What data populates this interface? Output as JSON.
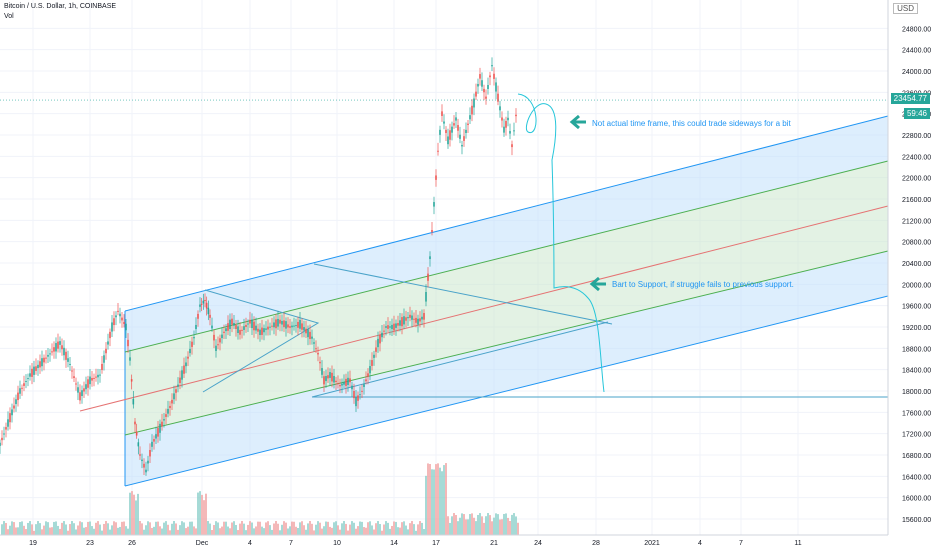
{
  "header": {
    "symbol": "Bitcoin / U.S. Dollar, 1h, COINBASE",
    "volume_label": "Vol",
    "currency": "USD"
  },
  "tags": {
    "last_price": "23454.77",
    "countdown": "59:46"
  },
  "notes": {
    "top": "Not actual time frame, this could trade sideways for a bit",
    "bottom": "Bart to Support, if struggle fails to previous support."
  },
  "colors": {
    "up": "#26a69a",
    "down": "#ef5350",
    "channel_blue": "#2196f3",
    "channel_green": "#4caf50",
    "median_red": "#e57373",
    "arrow": "#26a69a"
  },
  "chart_data": {
    "type": "candlestick",
    "title": "Bitcoin / U.S. Dollar, 1h, COINBASE",
    "ylim": [
      15400,
      25200
    ],
    "y_ticks": [
      15600,
      16000,
      16400,
      16800,
      17200,
      17600,
      18000,
      18400,
      18800,
      19200,
      19600,
      20000,
      20400,
      20800,
      21200,
      21600,
      22000,
      22400,
      22800,
      23200,
      23600,
      24000,
      24400,
      24800
    ],
    "y_tick_labels": [
      "15600.00",
      "16000.00",
      "16400.00",
      "16800.00",
      "17200.00",
      "17600.00",
      "18000.00",
      "18400.00",
      "18800.00",
      "19200.00",
      "19600.00",
      "20000.00",
      "20400.00",
      "20800.00",
      "21200.00",
      "21600.00",
      "22000.00",
      "22400.00",
      "22800.00",
      "23200.00",
      "23600.00",
      "24000.00",
      "24400.00",
      "24800.00"
    ],
    "x_ticks": [
      "19",
      "23",
      "26",
      "Dec",
      "4",
      "7",
      "10",
      "14",
      "17",
      "21",
      "24",
      "28",
      "2021",
      "4",
      "7",
      "11"
    ],
    "last_price": 23454.77,
    "price_path": [
      [
        0,
        17000
      ],
      [
        10,
        17500
      ],
      [
        20,
        18000
      ],
      [
        30,
        18300
      ],
      [
        40,
        18500
      ],
      [
        50,
        18700
      ],
      [
        60,
        18900
      ],
      [
        70,
        18500
      ],
      [
        80,
        17900
      ],
      [
        90,
        18200
      ],
      [
        100,
        18300
      ],
      [
        112,
        19200
      ],
      [
        118,
        19500
      ],
      [
        126,
        19200
      ],
      [
        130,
        18600
      ],
      [
        135,
        17400
      ],
      [
        140,
        16800
      ],
      [
        146,
        16500
      ],
      [
        152,
        17000
      ],
      [
        160,
        17300
      ],
      [
        170,
        17700
      ],
      [
        178,
        18100
      ],
      [
        186,
        18500
      ],
      [
        194,
        19000
      ],
      [
        200,
        19600
      ],
      [
        205,
        19700
      ],
      [
        210,
        19400
      ],
      [
        216,
        18800
      ],
      [
        224,
        19100
      ],
      [
        232,
        19300
      ],
      [
        240,
        19100
      ],
      [
        250,
        19300
      ],
      [
        260,
        19100
      ],
      [
        270,
        19200
      ],
      [
        280,
        19300
      ],
      [
        290,
        19200
      ],
      [
        300,
        19250
      ],
      [
        312,
        19000
      ],
      [
        318,
        18700
      ],
      [
        324,
        18200
      ],
      [
        330,
        18300
      ],
      [
        340,
        18100
      ],
      [
        350,
        18200
      ],
      [
        356,
        17800
      ],
      [
        362,
        18000
      ],
      [
        370,
        18400
      ],
      [
        378,
        18900
      ],
      [
        386,
        19200
      ],
      [
        394,
        19200
      ],
      [
        402,
        19300
      ],
      [
        410,
        19400
      ],
      [
        418,
        19300
      ],
      [
        424,
        19400
      ],
      [
        430,
        20500
      ],
      [
        434,
        21500
      ],
      [
        438,
        22500
      ],
      [
        442,
        23200
      ],
      [
        448,
        22700
      ],
      [
        456,
        23100
      ],
      [
        462,
        22600
      ],
      [
        468,
        23000
      ],
      [
        474,
        23400
      ],
      [
        480,
        23900
      ],
      [
        486,
        23500
      ],
      [
        492,
        24100
      ],
      [
        496,
        23700
      ],
      [
        500,
        23300
      ],
      [
        504,
        22900
      ],
      [
        508,
        23100
      ],
      [
        512,
        22600
      ],
      [
        518,
        23450
      ]
    ],
    "volume_level": "low with spikes near Nov 26, Dec 1 and Dec 17"
  }
}
